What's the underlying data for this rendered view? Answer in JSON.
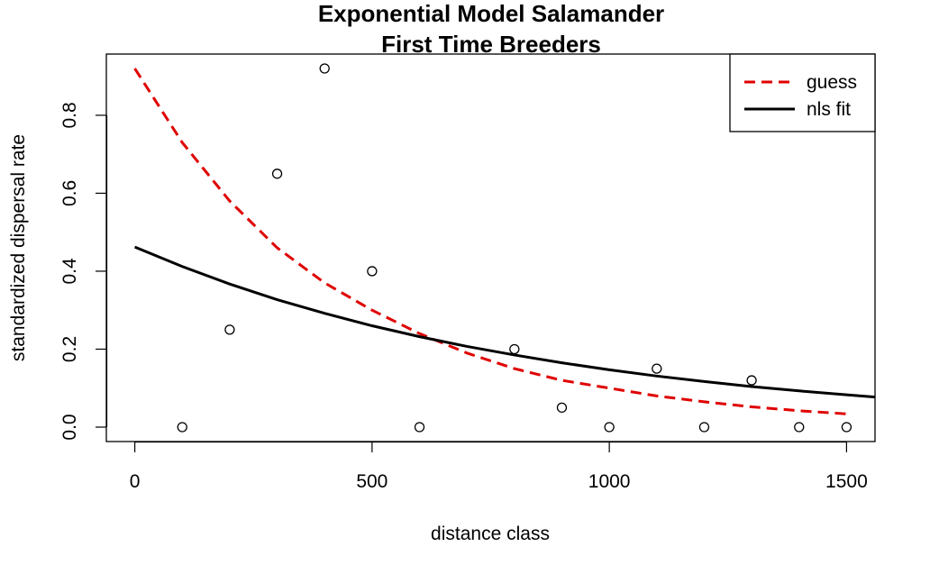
{
  "chart_data": {
    "type": "scatter",
    "title": "Exponential Model Salamander",
    "subtitle": "First Time Breeders",
    "xlabel": "distance class",
    "ylabel": "standardized dispersal rate",
    "xlim": [
      -60,
      1560
    ],
    "ylim": [
      -0.037,
      0.957
    ],
    "x_ticks": [
      0,
      500,
      1000,
      1500
    ],
    "x_tick_labels": [
      "0",
      "500",
      "1000",
      "1500"
    ],
    "y_ticks": [
      0,
      0.2,
      0.4,
      0.6,
      0.8
    ],
    "y_tick_labels": [
      "0.0",
      "0.2",
      "0.4",
      "0.6",
      "0.8"
    ],
    "grid": false,
    "legend_position": "top-right",
    "points": {
      "x": [
        100,
        200,
        300,
        400,
        500,
        600,
        800,
        900,
        1000,
        1100,
        1200,
        1300,
        1400,
        1500
      ],
      "y": [
        0.0,
        0.25,
        0.65,
        0.92,
        0.4,
        0.0,
        0.2,
        0.05,
        0.0,
        0.15,
        0.0,
        0.12,
        0.0,
        0.0
      ]
    },
    "series": [
      {
        "name": "guess",
        "style": "dashed",
        "color": "#e00000",
        "x": [
          0,
          100,
          200,
          300,
          400,
          500,
          600,
          700,
          800,
          900,
          1000,
          1100,
          1200,
          1300,
          1400,
          1500
        ],
        "y": [
          0.92,
          0.73,
          0.58,
          0.46,
          0.37,
          0.3,
          0.24,
          0.19,
          0.15,
          0.12,
          0.1,
          0.08,
          0.065,
          0.052,
          0.042,
          0.034
        ]
      },
      {
        "name": "nls fit",
        "style": "solid",
        "color": "#000000",
        "x": [
          0,
          100,
          200,
          300,
          400,
          500,
          600,
          700,
          800,
          900,
          1000,
          1100,
          1200,
          1300,
          1400,
          1500,
          1560
        ],
        "y": [
          0.462,
          0.412,
          0.367,
          0.327,
          0.292,
          0.26,
          0.232,
          0.207,
          0.185,
          0.165,
          0.147,
          0.131,
          0.117,
          0.104,
          0.093,
          0.083,
          0.077
        ]
      }
    ]
  }
}
